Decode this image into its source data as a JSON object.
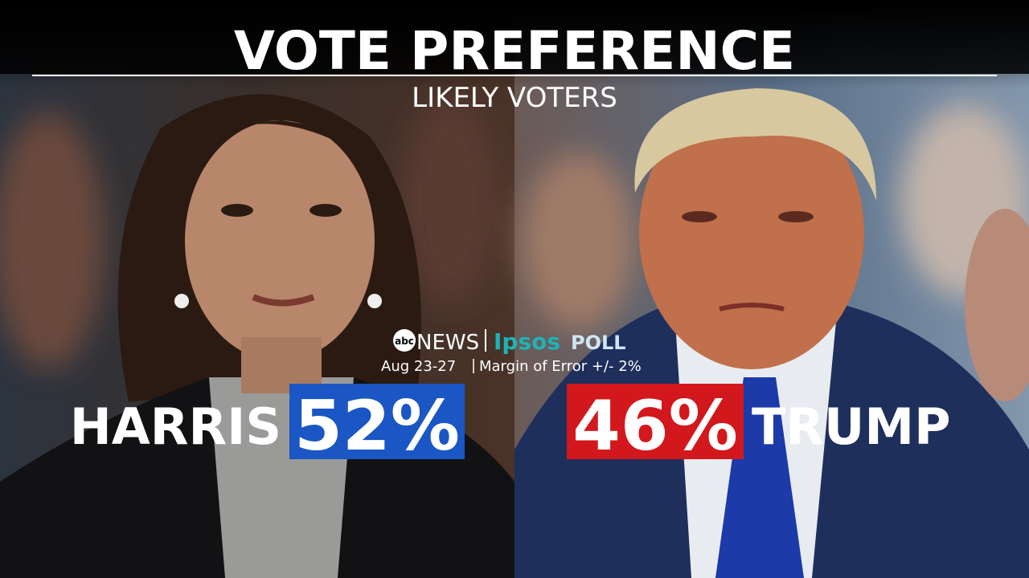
{
  "header": {
    "title": "VOTE PREFERENCE",
    "subtitle": "LIKELY VOTERS"
  },
  "source": {
    "network_mark": "abc",
    "network": "NEWS",
    "partner": "Ipsos",
    "label": "POLL",
    "dates": "Aug 23-27",
    "margin": "Margin of Error +/- 2%"
  },
  "candidates": [
    {
      "name": "HARRIS",
      "share": "52%"
    },
    {
      "name": "TRUMP",
      "share": "46%"
    }
  ]
}
